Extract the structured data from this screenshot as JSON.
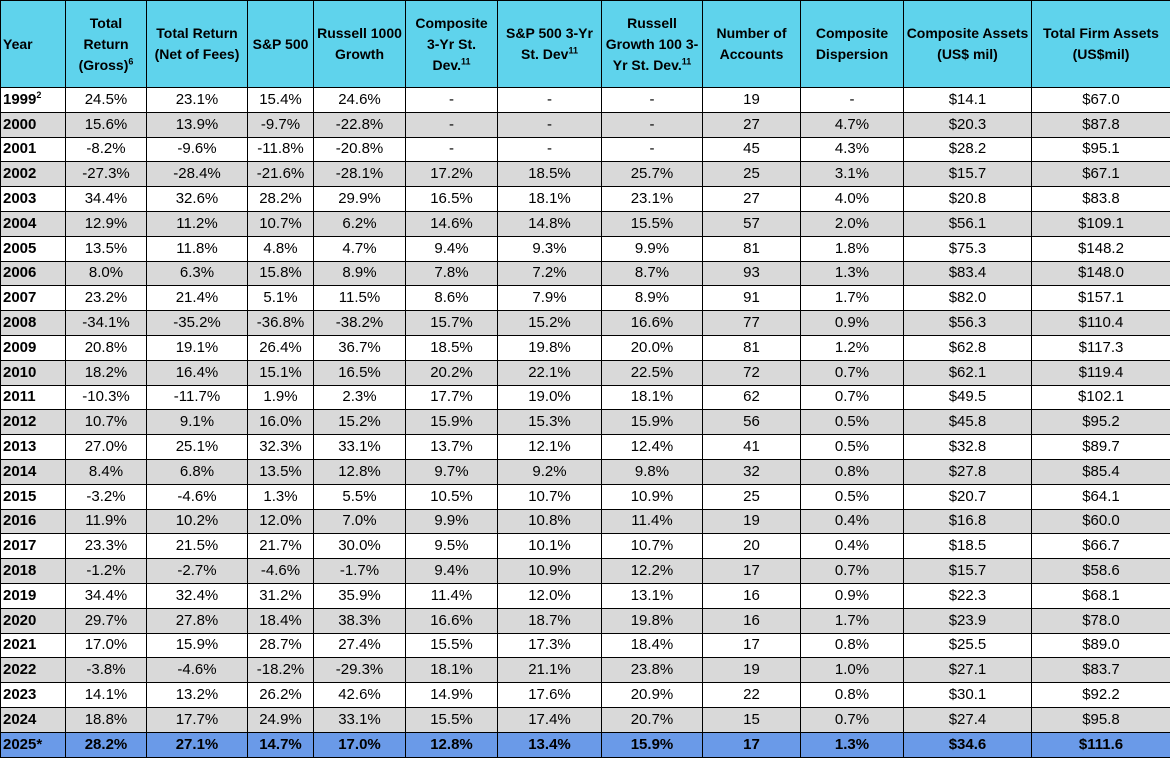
{
  "table": {
    "header": [
      {
        "text": "Year"
      },
      {
        "text": "Total Return (Gross)",
        "sup": "6"
      },
      {
        "text": "Total Return (Net of Fees)"
      },
      {
        "text": "S&P 500"
      },
      {
        "text": "Russell 1000 Growth"
      },
      {
        "text": "Composite 3-Yr St. Dev.",
        "sup": "11"
      },
      {
        "text": "S&P 500 3-Yr St. Dev",
        "sup": "11"
      },
      {
        "text": "Russell Growth 100 3-Yr St. Dev.",
        "sup": "11"
      },
      {
        "text": "Number of Accounts"
      },
      {
        "text": "Composite Dispersion"
      },
      {
        "text": "Composite Assets (US$ mil)"
      },
      {
        "text": "Total Firm Assets (US$mil)"
      }
    ],
    "rows": [
      [
        {
          "text": "1999",
          "sup": "2"
        },
        "24.5%",
        "23.1%",
        "15.4%",
        "24.6%",
        "-",
        "-",
        "-",
        "19",
        "-",
        "$14.1",
        "$67.0"
      ],
      [
        "2000",
        "15.6%",
        "13.9%",
        "-9.7%",
        "-22.8%",
        "-",
        "-",
        "-",
        "27",
        "4.7%",
        "$20.3",
        "$87.8"
      ],
      [
        "2001",
        "-8.2%",
        "-9.6%",
        "-11.8%",
        "-20.8%",
        "-",
        "-",
        "-",
        "45",
        "4.3%",
        "$28.2",
        "$95.1"
      ],
      [
        "2002",
        "-27.3%",
        "-28.4%",
        "-21.6%",
        "-28.1%",
        "17.2%",
        "18.5%",
        "25.7%",
        "25",
        "3.1%",
        "$15.7",
        "$67.1"
      ],
      [
        "2003",
        "34.4%",
        "32.6%",
        "28.2%",
        "29.9%",
        "16.5%",
        "18.1%",
        "23.1%",
        "27",
        "4.0%",
        "$20.8",
        "$83.8"
      ],
      [
        "2004",
        "12.9%",
        "11.2%",
        "10.7%",
        "6.2%",
        "14.6%",
        "14.8%",
        "15.5%",
        "57",
        "2.0%",
        "$56.1",
        "$109.1"
      ],
      [
        "2005",
        "13.5%",
        "11.8%",
        "4.8%",
        "4.7%",
        "9.4%",
        "9.3%",
        "9.9%",
        "81",
        "1.8%",
        "$75.3",
        "$148.2"
      ],
      [
        "2006",
        "8.0%",
        "6.3%",
        "15.8%",
        "8.9%",
        "7.8%",
        "7.2%",
        "8.7%",
        "93",
        "1.3%",
        "$83.4",
        "$148.0"
      ],
      [
        "2007",
        "23.2%",
        "21.4%",
        "5.1%",
        "11.5%",
        "8.6%",
        "7.9%",
        "8.9%",
        "91",
        "1.7%",
        "$82.0",
        "$157.1"
      ],
      [
        "2008",
        "-34.1%",
        "-35.2%",
        "-36.8%",
        "-38.2%",
        "15.7%",
        "15.2%",
        "16.6%",
        "77",
        "0.9%",
        "$56.3",
        "$110.4"
      ],
      [
        "2009",
        "20.8%",
        "19.1%",
        "26.4%",
        "36.7%",
        "18.5%",
        "19.8%",
        "20.0%",
        "81",
        "1.2%",
        "$62.8",
        "$117.3"
      ],
      [
        "2010",
        "18.2%",
        "16.4%",
        "15.1%",
        "16.5%",
        "20.2%",
        "22.1%",
        "22.5%",
        "72",
        "0.7%",
        "$62.1",
        "$119.4"
      ],
      [
        "2011",
        "-10.3%",
        "-11.7%",
        "1.9%",
        "2.3%",
        "17.7%",
        "19.0%",
        "18.1%",
        "62",
        "0.7%",
        "$49.5",
        "$102.1"
      ],
      [
        "2012",
        "10.7%",
        "9.1%",
        "16.0%",
        "15.2%",
        "15.9%",
        "15.3%",
        "15.9%",
        "56",
        "0.5%",
        "$45.8",
        "$95.2"
      ],
      [
        "2013",
        "27.0%",
        "25.1%",
        "32.3%",
        "33.1%",
        "13.7%",
        "12.1%",
        "12.4%",
        "41",
        "0.5%",
        "$32.8",
        "$89.7"
      ],
      [
        "2014",
        "8.4%",
        "6.8%",
        "13.5%",
        "12.8%",
        "9.7%",
        "9.2%",
        "9.8%",
        "32",
        "0.8%",
        "$27.8",
        "$85.4"
      ],
      [
        "2015",
        "-3.2%",
        "-4.6%",
        "1.3%",
        "5.5%",
        "10.5%",
        "10.7%",
        "10.9%",
        "25",
        "0.5%",
        "$20.7",
        "$64.1"
      ],
      [
        "2016",
        "11.9%",
        "10.2%",
        "12.0%",
        "7.0%",
        "9.9%",
        "10.8%",
        "11.4%",
        "19",
        "0.4%",
        "$16.8",
        "$60.0"
      ],
      [
        "2017",
        "23.3%",
        "21.5%",
        "21.7%",
        "30.0%",
        "9.5%",
        "10.1%",
        "10.7%",
        "20",
        "0.4%",
        "$18.5",
        "$66.7"
      ],
      [
        "2018",
        "-1.2%",
        "-2.7%",
        "-4.6%",
        "-1.7%",
        "9.4%",
        "10.9%",
        "12.2%",
        "17",
        "0.7%",
        "$15.7",
        "$58.6"
      ],
      [
        "2019",
        "34.4%",
        "32.4%",
        "31.2%",
        "35.9%",
        "11.4%",
        "12.0%",
        "13.1%",
        "16",
        "0.9%",
        "$22.3",
        "$68.1"
      ],
      [
        "2020",
        "29.7%",
        "27.8%",
        "18.4%",
        "38.3%",
        "16.6%",
        "18.7%",
        "19.8%",
        "16",
        "1.7%",
        "$23.9",
        "$78.0"
      ],
      [
        "2021",
        "17.0%",
        "15.9%",
        "28.7%",
        "27.4%",
        "15.5%",
        "17.3%",
        "18.4%",
        "17",
        "0.8%",
        "$25.5",
        "$89.0"
      ],
      [
        "2022",
        "-3.8%",
        "-4.6%",
        "-18.2%",
        "-29.3%",
        "18.1%",
        "21.1%",
        "23.8%",
        "19",
        "1.0%",
        "$27.1",
        "$83.7"
      ],
      [
        "2023",
        "14.1%",
        "13.2%",
        "26.2%",
        "42.6%",
        "14.9%",
        "17.6%",
        "20.9%",
        "22",
        "0.8%",
        "$30.1",
        "$92.2"
      ],
      [
        "2024",
        "18.8%",
        "17.7%",
        "24.9%",
        "33.1%",
        "15.5%",
        "17.4%",
        "20.7%",
        "15",
        "0.7%",
        "$27.4",
        "$95.8"
      ],
      [
        "2025*",
        "28.2%",
        "27.1%",
        "14.7%",
        "17.0%",
        "12.8%",
        "13.4%",
        "15.9%",
        "17",
        "1.3%",
        "$34.6",
        "$111.6"
      ]
    ]
  }
}
